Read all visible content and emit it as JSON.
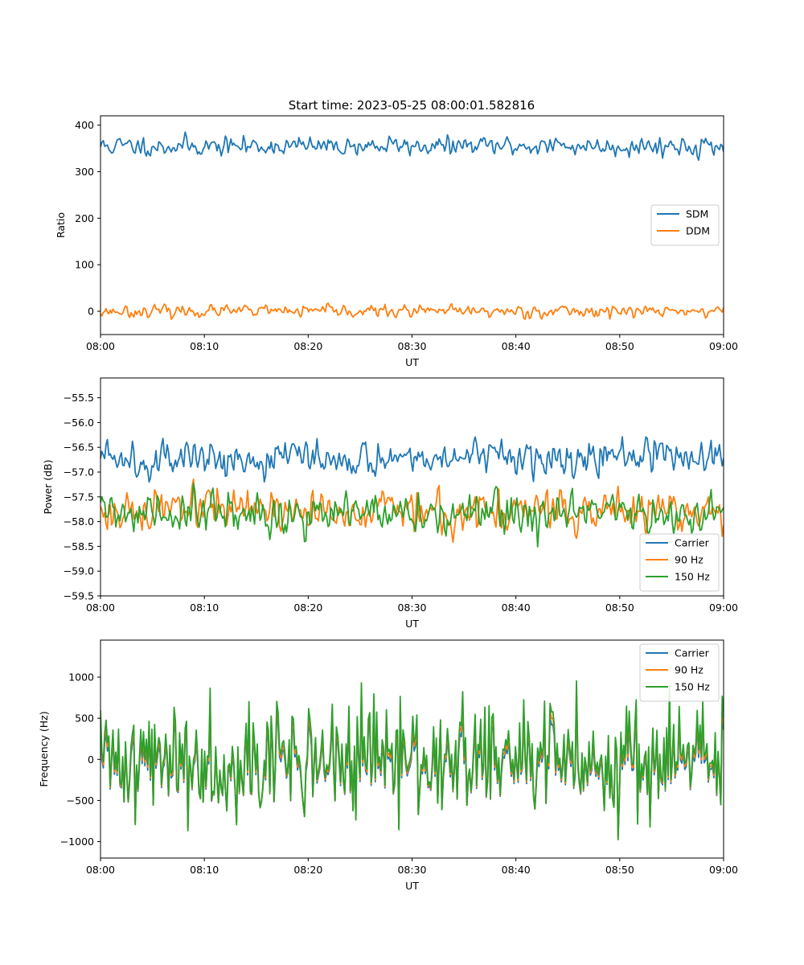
{
  "colors": {
    "blue": "#1f77b4",
    "orange": "#ff7f0e",
    "green": "#2ca02c"
  },
  "chart_data": [
    {
      "type": "line",
      "title": "Start time: 2023-05-25 08:00:01.582816",
      "xlabel": "UT",
      "ylabel": "Ratio",
      "xlim": [
        "08:00",
        "09:00"
      ],
      "ylim": [
        -50,
        420
      ],
      "x_ticks": [
        "08:00",
        "08:10",
        "08:20",
        "08:30",
        "08:40",
        "08:50",
        "09:00"
      ],
      "y_ticks": [
        0,
        100,
        200,
        300,
        400
      ],
      "legend": "center-right",
      "series": [
        {
          "name": "SDM",
          "color": "#1f77b4",
          "level": 355,
          "noise": 14,
          "seed": 11
        },
        {
          "name": "DDM",
          "color": "#ff7f0e",
          "level": 0,
          "noise": 9,
          "seed": 23
        }
      ]
    },
    {
      "type": "line",
      "title": "",
      "xlabel": "UT",
      "ylabel": "Power (dB)",
      "xlim": [
        "08:00",
        "09:00"
      ],
      "ylim": [
        -59.5,
        -55.1
      ],
      "x_ticks": [
        "08:00",
        "08:10",
        "08:20",
        "08:30",
        "08:40",
        "08:50",
        "09:00"
      ],
      "y_ticks": [
        -59.5,
        -59.0,
        -58.5,
        -58.0,
        -57.5,
        -57.0,
        -56.5,
        -56.0,
        -55.5
      ],
      "legend": "lower-right",
      "series": [
        {
          "name": "Carrier",
          "color": "#1f77b4",
          "level": -56.7,
          "noise": 0.25,
          "seed": 5
        },
        {
          "name": "90 Hz",
          "color": "#ff7f0e",
          "level": -57.8,
          "noise": 0.28,
          "seed": 17
        },
        {
          "name": "150 Hz",
          "color": "#2ca02c",
          "level": -57.85,
          "noise": 0.3,
          "seed": 31
        }
      ]
    },
    {
      "type": "line",
      "title": "",
      "xlabel": "UT",
      "ylabel": "Frequency (Hz)",
      "xlim": [
        "08:00",
        "09:00"
      ],
      "ylim": [
        -1200,
        1450
      ],
      "x_ticks": [
        "08:00",
        "08:10",
        "08:20",
        "08:30",
        "08:40",
        "08:50",
        "09:00"
      ],
      "y_ticks": [
        -1000,
        -500,
        0,
        500,
        1000
      ],
      "legend": "upper-right",
      "series": [
        {
          "name": "Carrier",
          "color": "#1f77b4",
          "level": -60,
          "noise": 300,
          "seed": 41
        },
        {
          "name": "90 Hz",
          "color": "#ff7f0e",
          "level": -20,
          "noise": 300,
          "seed": 41
        },
        {
          "name": "150 Hz",
          "color": "#2ca02c",
          "level": 20,
          "noise": 300,
          "seed": 41
        }
      ]
    }
  ]
}
